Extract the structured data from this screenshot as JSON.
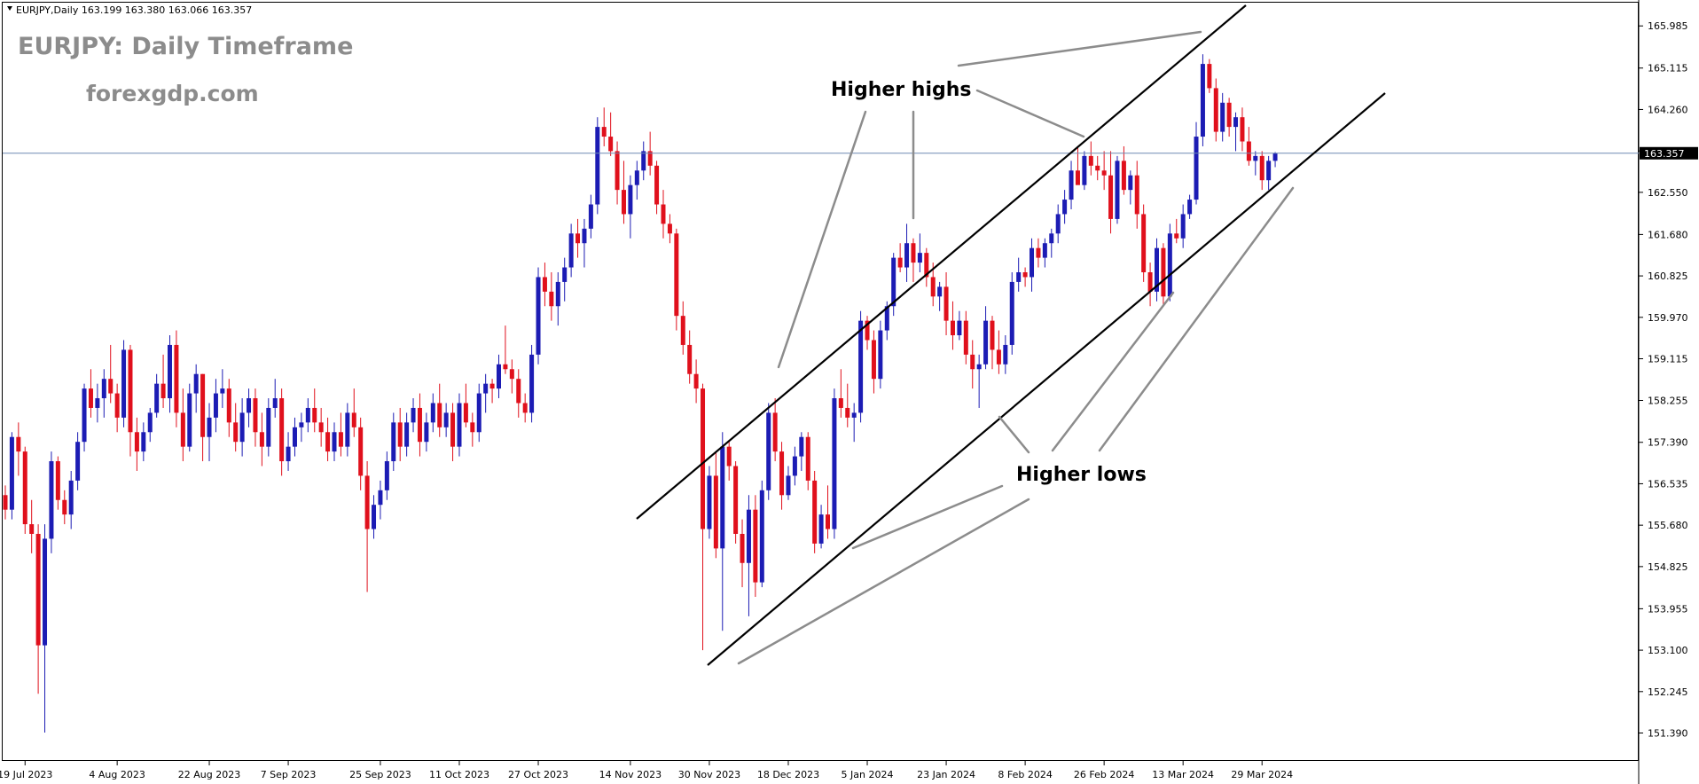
{
  "header": {
    "symbol_line": "EURJPY,Daily  163.199 163.380 163.066 163.357"
  },
  "watermark": {
    "title": "EURJPY: Daily Timeframe",
    "site": "forexgdp.com"
  },
  "colors": {
    "bull": "#1c1cb4",
    "bear": "#e0101c",
    "wick": "#000000",
    "price_line": "#6e8ab4",
    "price_tag_bg": "#000000",
    "price_tag_fg": "#ffffff",
    "annotation": "#8c8c8c",
    "trendline": "#000000"
  },
  "chart_data": {
    "type": "candlestick",
    "symbol": "EURJPY",
    "timeframe": "Daily",
    "ylim": [
      150.96,
      166.41
    ],
    "current_price": 163.357,
    "current_price_label": "163.357",
    "y_ticks": [
      "165.985",
      "165.115",
      "164.260",
      "163.405",
      "162.550",
      "161.680",
      "160.825",
      "159.970",
      "159.115",
      "158.255",
      "157.390",
      "156.535",
      "155.680",
      "154.825",
      "153.955",
      "153.100",
      "152.245",
      "151.390"
    ],
    "x_ticks": [
      {
        "label": "19 Jul 2023",
        "idx": 3
      },
      {
        "label": "4 Aug 2023",
        "idx": 17
      },
      {
        "label": "22 Aug 2023",
        "idx": 31
      },
      {
        "label": "7 Sep 2023",
        "idx": 43
      },
      {
        "label": "25 Sep 2023",
        "idx": 57
      },
      {
        "label": "11 Oct 2023",
        "idx": 69
      },
      {
        "label": "27 Oct 2023",
        "idx": 81
      },
      {
        "label": "14 Nov 2023",
        "idx": 95
      },
      {
        "label": "30 Nov 2023",
        "idx": 107
      },
      {
        "label": "18 Dec 2023",
        "idx": 119
      },
      {
        "label": "5 Jan 2024",
        "idx": 131
      },
      {
        "label": "23 Jan 2024",
        "idx": 143
      },
      {
        "label": "8 Feb 2024",
        "idx": 155
      },
      {
        "label": "26 Feb 2024",
        "idx": 167
      },
      {
        "label": "13 Mar 2024",
        "idx": 179
      },
      {
        "label": "29 Mar 2024",
        "idx": 191
      }
    ],
    "candles": [
      [
        156.3,
        156.5,
        155.8,
        156.0
      ],
      [
        156.0,
        157.6,
        155.8,
        157.5
      ],
      [
        157.5,
        157.8,
        156.7,
        157.2
      ],
      [
        157.2,
        157.3,
        155.5,
        155.7
      ],
      [
        155.7,
        156.2,
        155.1,
        155.5
      ],
      [
        155.5,
        155.7,
        152.2,
        153.2
      ],
      [
        153.2,
        155.7,
        151.4,
        155.4
      ],
      [
        155.4,
        157.2,
        155.1,
        157.0
      ],
      [
        157.0,
        157.1,
        156.0,
        156.2
      ],
      [
        156.2,
        156.4,
        155.7,
        155.9
      ],
      [
        155.9,
        156.8,
        155.6,
        156.6
      ],
      [
        156.6,
        157.6,
        156.4,
        157.4
      ],
      [
        157.4,
        158.6,
        157.2,
        158.5
      ],
      [
        158.5,
        158.9,
        157.9,
        158.1
      ],
      [
        158.1,
        158.6,
        157.8,
        158.3
      ],
      [
        158.3,
        158.9,
        157.9,
        158.7
      ],
      [
        158.7,
        159.4,
        158.2,
        158.4
      ],
      [
        158.4,
        158.6,
        157.6,
        157.9
      ],
      [
        157.9,
        159.5,
        157.7,
        159.3
      ],
      [
        159.3,
        159.4,
        157.1,
        157.6
      ],
      [
        157.6,
        157.9,
        156.8,
        157.2
      ],
      [
        157.2,
        157.8,
        157.0,
        157.6
      ],
      [
        157.6,
        158.1,
        157.4,
        158.0
      ],
      [
        158.0,
        158.8,
        157.9,
        158.6
      ],
      [
        158.6,
        159.2,
        158.1,
        158.3
      ],
      [
        158.3,
        159.6,
        158.0,
        159.4
      ],
      [
        159.4,
        159.7,
        157.7,
        158.0
      ],
      [
        158.0,
        158.5,
        157.0,
        157.3
      ],
      [
        157.3,
        158.6,
        157.2,
        158.4
      ],
      [
        158.4,
        159.0,
        158.0,
        158.8
      ],
      [
        158.8,
        158.8,
        157.0,
        157.5
      ],
      [
        157.5,
        158.2,
        157.0,
        157.9
      ],
      [
        157.9,
        158.7,
        157.6,
        158.4
      ],
      [
        158.4,
        158.9,
        158.1,
        158.5
      ],
      [
        158.5,
        158.7,
        157.5,
        157.8
      ],
      [
        157.8,
        158.2,
        157.2,
        157.4
      ],
      [
        157.4,
        158.3,
        157.1,
        158.0
      ],
      [
        158.0,
        158.5,
        157.7,
        158.3
      ],
      [
        158.3,
        158.5,
        157.3,
        157.6
      ],
      [
        157.6,
        158.0,
        156.9,
        157.3
      ],
      [
        157.3,
        158.3,
        157.1,
        158.1
      ],
      [
        158.1,
        158.7,
        157.9,
        158.3
      ],
      [
        158.3,
        158.5,
        156.7,
        157.0
      ],
      [
        157.0,
        157.6,
        156.8,
        157.3
      ],
      [
        157.3,
        157.9,
        157.1,
        157.7
      ],
      [
        157.7,
        158.0,
        157.4,
        157.8
      ],
      [
        157.8,
        158.3,
        157.6,
        158.1
      ],
      [
        158.1,
        158.5,
        157.6,
        157.8
      ],
      [
        157.8,
        158.1,
        157.3,
        157.6
      ],
      [
        157.6,
        157.9,
        157.0,
        157.2
      ],
      [
        157.2,
        157.8,
        157.0,
        157.6
      ],
      [
        157.6,
        158.0,
        157.1,
        157.3
      ],
      [
        157.3,
        158.2,
        157.1,
        158.0
      ],
      [
        158.0,
        158.5,
        157.5,
        157.7
      ],
      [
        157.7,
        157.9,
        156.4,
        156.7
      ],
      [
        156.7,
        157.0,
        154.3,
        155.6
      ],
      [
        155.6,
        156.3,
        155.4,
        156.1
      ],
      [
        156.1,
        156.6,
        155.8,
        156.4
      ],
      [
        156.4,
        157.2,
        156.2,
        157.0
      ],
      [
        157.0,
        158.0,
        156.8,
        157.8
      ],
      [
        157.8,
        158.1,
        157.0,
        157.3
      ],
      [
        157.3,
        158.0,
        157.1,
        157.8
      ],
      [
        157.8,
        158.3,
        157.6,
        158.1
      ],
      [
        158.1,
        158.4,
        157.1,
        157.4
      ],
      [
        157.4,
        158.0,
        157.2,
        157.8
      ],
      [
        157.8,
        158.4,
        157.6,
        158.2
      ],
      [
        158.2,
        158.6,
        157.5,
        157.7
      ],
      [
        157.7,
        158.2,
        157.5,
        158.0
      ],
      [
        158.0,
        158.2,
        157.0,
        157.3
      ],
      [
        157.3,
        158.4,
        157.1,
        158.2
      ],
      [
        158.2,
        158.6,
        157.7,
        157.8
      ],
      [
        157.8,
        158.0,
        157.3,
        157.6
      ],
      [
        157.6,
        158.6,
        157.4,
        158.4
      ],
      [
        158.4,
        158.8,
        158.0,
        158.6
      ],
      [
        158.6,
        158.7,
        158.2,
        158.5
      ],
      [
        158.5,
        159.2,
        158.3,
        159.0
      ],
      [
        159.0,
        159.8,
        158.8,
        158.9
      ],
      [
        158.9,
        159.1,
        158.4,
        158.7
      ],
      [
        158.7,
        158.9,
        157.9,
        158.2
      ],
      [
        158.2,
        158.4,
        157.8,
        158.0
      ],
      [
        158.0,
        159.4,
        157.8,
        159.2
      ],
      [
        159.2,
        161.0,
        159.0,
        160.8
      ],
      [
        160.8,
        161.1,
        160.2,
        160.5
      ],
      [
        160.5,
        160.9,
        159.9,
        160.2
      ],
      [
        160.2,
        160.9,
        159.8,
        160.7
      ],
      [
        160.7,
        161.2,
        160.3,
        161.0
      ],
      [
        161.0,
        161.9,
        160.8,
        161.7
      ],
      [
        161.7,
        162.0,
        161.2,
        161.5
      ],
      [
        161.5,
        162.0,
        161.0,
        161.8
      ],
      [
        161.8,
        162.5,
        161.6,
        162.3
      ],
      [
        162.3,
        164.1,
        162.1,
        163.9
      ],
      [
        163.9,
        164.3,
        163.5,
        163.7
      ],
      [
        163.7,
        164.2,
        163.3,
        163.4
      ],
      [
        163.4,
        163.6,
        162.3,
        162.6
      ],
      [
        162.6,
        163.2,
        161.9,
        162.1
      ],
      [
        162.1,
        162.9,
        161.6,
        162.7
      ],
      [
        162.7,
        163.2,
        162.4,
        163.0
      ],
      [
        163.0,
        163.6,
        162.8,
        163.4
      ],
      [
        163.4,
        163.8,
        162.9,
        163.1
      ],
      [
        163.1,
        163.2,
        162.1,
        162.3
      ],
      [
        162.3,
        162.6,
        161.6,
        161.9
      ],
      [
        161.9,
        162.1,
        161.5,
        161.7
      ],
      [
        161.7,
        161.8,
        159.7,
        160.0
      ],
      [
        160.0,
        160.3,
        159.2,
        159.4
      ],
      [
        159.4,
        159.7,
        158.6,
        158.8
      ],
      [
        158.8,
        159.1,
        158.2,
        158.5
      ],
      [
        158.5,
        158.6,
        153.1,
        155.6
      ],
      [
        155.6,
        156.9,
        155.4,
        156.7
      ],
      [
        156.7,
        157.2,
        155.0,
        155.2
      ],
      [
        155.2,
        157.6,
        153.5,
        157.3
      ],
      [
        157.3,
        157.4,
        156.6,
        156.9
      ],
      [
        156.9,
        157.0,
        155.3,
        155.5
      ],
      [
        155.5,
        155.8,
        154.4,
        154.9
      ],
      [
        154.9,
        156.3,
        153.8,
        156.0
      ],
      [
        156.0,
        156.3,
        154.2,
        154.5
      ],
      [
        154.5,
        156.6,
        154.4,
        156.4
      ],
      [
        156.4,
        158.2,
        156.2,
        158.0
      ],
      [
        158.0,
        158.3,
        157.0,
        157.2
      ],
      [
        157.2,
        157.4,
        156.0,
        156.3
      ],
      [
        156.3,
        156.9,
        156.2,
        156.7
      ],
      [
        156.7,
        157.3,
        156.5,
        157.1
      ],
      [
        157.1,
        157.6,
        156.8,
        157.5
      ],
      [
        157.5,
        157.6,
        156.4,
        156.6
      ],
      [
        156.6,
        156.8,
        155.1,
        155.3
      ],
      [
        155.3,
        156.1,
        155.2,
        155.9
      ],
      [
        155.9,
        156.5,
        155.4,
        155.6
      ],
      [
        155.6,
        158.5,
        155.4,
        158.3
      ],
      [
        158.3,
        158.9,
        157.9,
        158.1
      ],
      [
        158.1,
        158.6,
        157.7,
        157.9
      ],
      [
        157.9,
        158.2,
        157.4,
        158.0
      ],
      [
        158.0,
        160.1,
        157.8,
        159.9
      ],
      [
        159.9,
        160.0,
        159.3,
        159.5
      ],
      [
        159.5,
        159.7,
        158.4,
        158.7
      ],
      [
        158.7,
        159.9,
        158.5,
        159.7
      ],
      [
        159.7,
        160.3,
        159.5,
        160.2
      ],
      [
        160.2,
        161.3,
        160.0,
        161.2
      ],
      [
        161.2,
        161.5,
        160.9,
        161.0
      ],
      [
        161.0,
        161.9,
        160.7,
        161.5
      ],
      [
        161.5,
        161.6,
        160.7,
        161.1
      ],
      [
        161.1,
        161.7,
        160.9,
        161.3
      ],
      [
        161.3,
        161.4,
        160.6,
        160.8
      ],
      [
        160.8,
        161.1,
        160.2,
        160.4
      ],
      [
        160.4,
        160.7,
        160.1,
        160.6
      ],
      [
        160.6,
        160.9,
        159.6,
        159.9
      ],
      [
        159.9,
        160.3,
        159.3,
        159.6
      ],
      [
        159.6,
        160.1,
        159.5,
        159.9
      ],
      [
        159.9,
        160.1,
        159.0,
        159.2
      ],
      [
        159.2,
        159.5,
        158.5,
        158.9
      ],
      [
        158.9,
        159.2,
        158.1,
        159.0
      ],
      [
        159.0,
        160.2,
        158.9,
        159.9
      ],
      [
        159.9,
        160.0,
        158.9,
        159.3
      ],
      [
        159.3,
        159.7,
        158.8,
        159.0
      ],
      [
        159.0,
        159.6,
        158.8,
        159.4
      ],
      [
        159.4,
        160.9,
        159.2,
        160.7
      ],
      [
        160.7,
        161.2,
        160.5,
        160.9
      ],
      [
        160.9,
        161.0,
        160.6,
        160.8
      ],
      [
        160.8,
        161.6,
        160.5,
        161.4
      ],
      [
        161.4,
        161.6,
        161.0,
        161.2
      ],
      [
        161.2,
        161.6,
        161.0,
        161.5
      ],
      [
        161.5,
        161.8,
        161.2,
        161.7
      ],
      [
        161.7,
        162.3,
        161.5,
        162.1
      ],
      [
        162.1,
        162.6,
        161.9,
        162.4
      ],
      [
        162.4,
        163.2,
        162.2,
        163.0
      ],
      [
        163.0,
        163.5,
        162.8,
        162.7
      ],
      [
        162.7,
        163.4,
        162.6,
        163.3
      ],
      [
        163.3,
        163.6,
        162.9,
        163.1
      ],
      [
        163.1,
        163.3,
        162.8,
        163.0
      ],
      [
        163.0,
        163.4,
        162.6,
        162.9
      ],
      [
        162.9,
        163.4,
        161.7,
        162.0
      ],
      [
        162.0,
        163.3,
        161.9,
        163.2
      ],
      [
        163.2,
        163.5,
        162.5,
        162.6
      ],
      [
        162.6,
        163.0,
        162.3,
        162.9
      ],
      [
        162.9,
        163.2,
        161.8,
        162.1
      ],
      [
        162.1,
        162.3,
        160.7,
        160.9
      ],
      [
        160.9,
        161.1,
        160.2,
        160.5
      ],
      [
        160.5,
        161.6,
        160.3,
        161.4
      ],
      [
        161.4,
        161.5,
        160.2,
        160.4
      ],
      [
        160.4,
        161.9,
        160.3,
        161.7
      ],
      [
        161.7,
        162.0,
        161.5,
        161.6
      ],
      [
        161.6,
        162.3,
        161.4,
        162.1
      ],
      [
        162.1,
        162.5,
        162.0,
        162.4
      ],
      [
        162.4,
        164.0,
        162.3,
        163.7
      ],
      [
        163.7,
        165.4,
        163.5,
        165.2
      ],
      [
        165.2,
        165.3,
        164.6,
        164.7
      ],
      [
        164.7,
        164.9,
        163.6,
        163.8
      ],
      [
        163.8,
        164.6,
        163.6,
        164.4
      ],
      [
        164.4,
        164.5,
        163.7,
        163.9
      ],
      [
        163.9,
        164.2,
        163.4,
        164.1
      ],
      [
        164.1,
        164.3,
        163.4,
        163.6
      ],
      [
        163.6,
        163.9,
        163.1,
        163.2
      ],
      [
        163.2,
        163.4,
        162.9,
        163.3
      ],
      [
        163.3,
        163.4,
        162.6,
        162.8
      ],
      [
        162.8,
        163.3,
        162.6,
        163.2
      ],
      [
        163.2,
        163.38,
        163.07,
        163.36
      ]
    ]
  },
  "annotations": {
    "higher_highs": "Higher highs",
    "higher_lows": "Higher lows"
  }
}
